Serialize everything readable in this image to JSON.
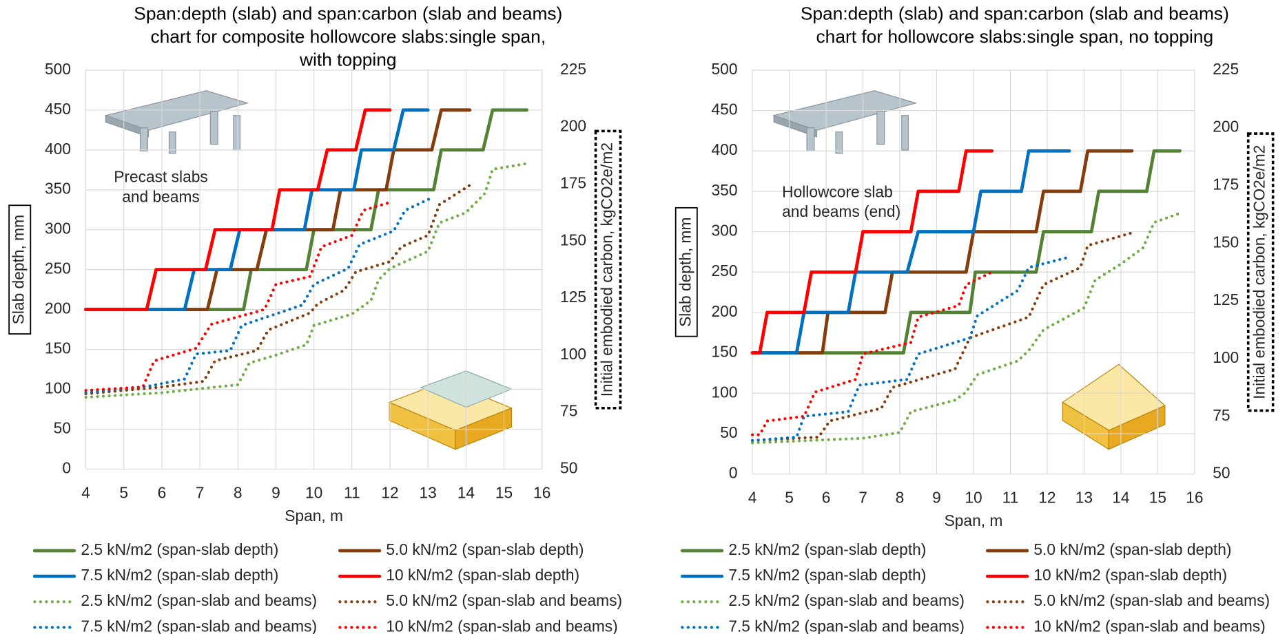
{
  "chart_data": [
    {
      "type": "line",
      "title": [
        "Span:depth (slab) and span:carbon (slab and beams)",
        "chart for composite hollowcore slabs:single span,",
        "with topping"
      ],
      "xlabel": "Span, m",
      "ylabel": "Slab depth, mm",
      "y2label": "Initial embodied carbon, kgCO2e/m2",
      "annotation": [
        "Precast slabs",
        "and beams"
      ],
      "xlim": [
        4,
        16
      ],
      "xticks": [
        4,
        5,
        6,
        7,
        8,
        9,
        10,
        11,
        12,
        13,
        14,
        15,
        16
      ],
      "ylim": [
        0,
        500
      ],
      "yticks": [
        0,
        50,
        100,
        150,
        200,
        250,
        300,
        350,
        400,
        450,
        500
      ],
      "y2lim": [
        50,
        225
      ],
      "y2ticks": [
        50,
        75,
        100,
        125,
        150,
        175,
        200,
        225
      ],
      "grid": true,
      "series": [
        {
          "name": "2.5 kN/m2 (span-slab depth)",
          "color": "#548235",
          "style": "solid",
          "x": [
            4,
            8.15,
            8.35,
            9.8,
            10,
            11.5,
            11.7,
            13.15,
            13.35,
            14.45,
            14.7,
            15.6
          ],
          "values": [
            200,
            200,
            250,
            250,
            300,
            300,
            350,
            350,
            400,
            400,
            450,
            450
          ]
        },
        {
          "name": "5.0 kN/m2 (span-slab depth)",
          "color": "#843c0c",
          "style": "solid",
          "x": [
            4,
            7.2,
            7.45,
            8.5,
            8.75,
            10.5,
            10.7,
            11.9,
            12.1,
            13.1,
            13.35,
            14.1
          ],
          "values": [
            200,
            200,
            250,
            250,
            300,
            300,
            350,
            350,
            400,
            400,
            450,
            450
          ]
        },
        {
          "name": "7.5 kN/m2 (span-slab depth)",
          "color": "#0070c0",
          "style": "solid",
          "x": [
            4,
            6.6,
            6.85,
            7.8,
            8.05,
            9.75,
            9.95,
            11.05,
            11.25,
            12.1,
            12.35,
            13
          ],
          "values": [
            200,
            200,
            250,
            250,
            300,
            300,
            350,
            350,
            400,
            400,
            450,
            450
          ]
        },
        {
          "name": "10 kN/m2 (span-slab depth)",
          "color": "#ff0000",
          "style": "solid",
          "x": [
            4,
            5.6,
            5.85,
            7.15,
            7.4,
            8.9,
            9.1,
            10.1,
            10.35,
            11.1,
            11.35,
            12
          ],
          "values": [
            200,
            200,
            250,
            250,
            300,
            300,
            350,
            350,
            400,
            400,
            450,
            450
          ]
        },
        {
          "name": "2.5 kN/m2 (span-slab and beams)",
          "color": "#70ad47",
          "style": "dotted",
          "axis": "y2",
          "x": [
            4,
            6,
            8,
            8.3,
            9,
            9.8,
            10,
            11,
            11.5,
            11.7,
            12,
            13,
            13.3,
            14,
            14.5,
            14.7,
            15.6
          ],
          "values": [
            81.5,
            83.5,
            87,
            96.5,
            100,
            104.5,
            113,
            118,
            124,
            133,
            138,
            145.5,
            158,
            162.5,
            171,
            181.5,
            184
          ]
        },
        {
          "name": "5.0 kN/m2  (span-slab and beams)",
          "color": "#843c0c",
          "style": "dotted",
          "axis": "y2",
          "x": [
            4,
            6,
            7.1,
            7.4,
            8.5,
            8.8,
            9.9,
            10.1,
            10.8,
            11.1,
            12,
            12.3,
            13,
            13.3,
            14.1
          ],
          "values": [
            83,
            86,
            88.5,
            97.5,
            102,
            111,
            118.5,
            122.5,
            128.5,
            136.5,
            141,
            147.5,
            152.5,
            166,
            174.5
          ]
        },
        {
          "name": "7.5 kN/m2  (span-slab and beams)",
          "color": "#0070c0",
          "style": "dotted",
          "axis": "y2",
          "x": [
            4,
            5.7,
            6.6,
            6.9,
            7.8,
            8.1,
            9.7,
            10,
            10.9,
            11.2,
            12.1,
            12.4,
            13.1
          ],
          "values": [
            83.5,
            86.5,
            89.5,
            100.5,
            102,
            113,
            122,
            131,
            138,
            148.5,
            154.5,
            163.5,
            169
          ]
        },
        {
          "name": "10 kN/m2  (span-slab and beams)",
          "color": "#ff0000",
          "style": "dotted",
          "axis": "y2",
          "x": [
            4,
            5.5,
            5.8,
            6.9,
            7.3,
            8.7,
            9,
            9.9,
            10.2,
            11,
            11.3,
            12
          ],
          "values": [
            84.5,
            86,
            97.5,
            103,
            113.5,
            120,
            131,
            134.5,
            147.5,
            152.5,
            163.5,
            167
          ]
        }
      ]
    },
    {
      "type": "line",
      "title": [
        "Span:depth (slab) and span:carbon (slab and beams)",
        "chart for hollowcore slabs:single span, no topping"
      ],
      "xlabel": "Span, m",
      "ylabel": "Slab depth, mm",
      "y2label": "Initial embodied carbon, kgCO2e/m2",
      "annotation": [
        "Hollowcore slab",
        "and beams (end)"
      ],
      "xlim": [
        4,
        16
      ],
      "xticks": [
        4,
        5,
        6,
        7,
        8,
        9,
        10,
        11,
        12,
        13,
        14,
        15,
        16
      ],
      "ylim": [
        0,
        500
      ],
      "yticks": [
        0,
        50,
        100,
        150,
        200,
        250,
        300,
        350,
        400,
        450,
        500
      ],
      "y2lim": [
        50,
        225
      ],
      "y2ticks": [
        50,
        75,
        100,
        125,
        150,
        175,
        200,
        225
      ],
      "grid": true,
      "series": [
        {
          "name": "2.5 kN/m2 (span-slab depth)",
          "color": "#548235",
          "style": "solid",
          "x": [
            4,
            8.1,
            8.3,
            9.9,
            10.05,
            11.7,
            11.9,
            13.2,
            13.4,
            14.7,
            14.9,
            15.6
          ],
          "values": [
            150,
            150,
            200,
            200,
            250,
            250,
            300,
            300,
            350,
            350,
            400,
            400
          ]
        },
        {
          "name": "5.0 kN/m2 (span-slab depth)",
          "color": "#843c0c",
          "style": "solid",
          "x": [
            4,
            5.9,
            6.05,
            7.6,
            7.8,
            9.8,
            10,
            11.7,
            11.9,
            12.9,
            13.1,
            14.3
          ],
          "values": [
            150,
            150,
            200,
            200,
            250,
            250,
            300,
            300,
            350,
            350,
            400,
            400
          ]
        },
        {
          "name": "7.5 kN/m2 (span-slab depth)",
          "color": "#0070c0",
          "style": "solid",
          "x": [
            4,
            5.2,
            5.4,
            6.6,
            6.8,
            8.2,
            8.5,
            10,
            10.2,
            11.3,
            11.5,
            12.6
          ],
          "values": [
            150,
            150,
            200,
            200,
            250,
            250,
            300,
            300,
            350,
            350,
            400,
            400
          ]
        },
        {
          "name": "10 kN/m2 (span-slab depth)",
          "color": "#ff0000",
          "style": "solid",
          "x": [
            4,
            4.2,
            4.4,
            5.4,
            5.6,
            6.8,
            7,
            8.3,
            8.5,
            9.6,
            9.8,
            10.5
          ],
          "values": [
            150,
            150,
            200,
            200,
            250,
            250,
            300,
            300,
            350,
            350,
            400,
            400
          ]
        },
        {
          "name": "2.5 kN/m2 (span-slab and beams)",
          "color": "#70ad47",
          "style": "dotted",
          "axis": "y2",
          "x": [
            4,
            7,
            8,
            8.3,
            9.5,
            9.8,
            10.1,
            11.2,
            11.5,
            11.9,
            13,
            13.3,
            14,
            14.6,
            14.9,
            15.6
          ],
          "values": [
            63.5,
            65.5,
            68,
            77,
            82,
            85.5,
            93,
            99,
            103.5,
            112.5,
            122,
            134,
            141,
            148,
            159,
            163
          ]
        },
        {
          "name": "5.0 kN/m2  (span-slab and beams)",
          "color": "#843c0c",
          "style": "dotted",
          "axis": "y2",
          "x": [
            4,
            5.8,
            6.1,
            7.5,
            7.8,
            9.5,
            9.9,
            11.5,
            11.9,
            12.9,
            13.1,
            14.3
          ],
          "values": [
            64.5,
            66,
            73,
            78.5,
            87.5,
            95.5,
            109,
            118,
            132,
            139.5,
            149,
            154.5
          ]
        },
        {
          "name": "7.5 kN/m2  (span-slab and beams)",
          "color": "#0070c0",
          "style": "dotted",
          "axis": "y2",
          "x": [
            4,
            5.2,
            5.4,
            6.6,
            6.9,
            8.2,
            8.5,
            9.9,
            10.1,
            11.2,
            11.5,
            12.6
          ],
          "values": [
            64.5,
            66,
            75,
            77,
            88.5,
            91,
            102,
            109,
            118.5,
            129.5,
            139.5,
            144
          ]
        },
        {
          "name": "10 kN/m2  (span-slab and beams)",
          "color": "#ff0000",
          "style": "dotted",
          "axis": "y2",
          "x": [
            4,
            4.2,
            4.4,
            5.4,
            5.7,
            6.8,
            7,
            8.3,
            8.5,
            9.6,
            9.8,
            10.5
          ],
          "values": [
            67,
            67,
            73,
            75,
            85.5,
            91,
            102,
            107,
            118,
            123,
            132,
            137.5
          ]
        }
      ]
    }
  ]
}
